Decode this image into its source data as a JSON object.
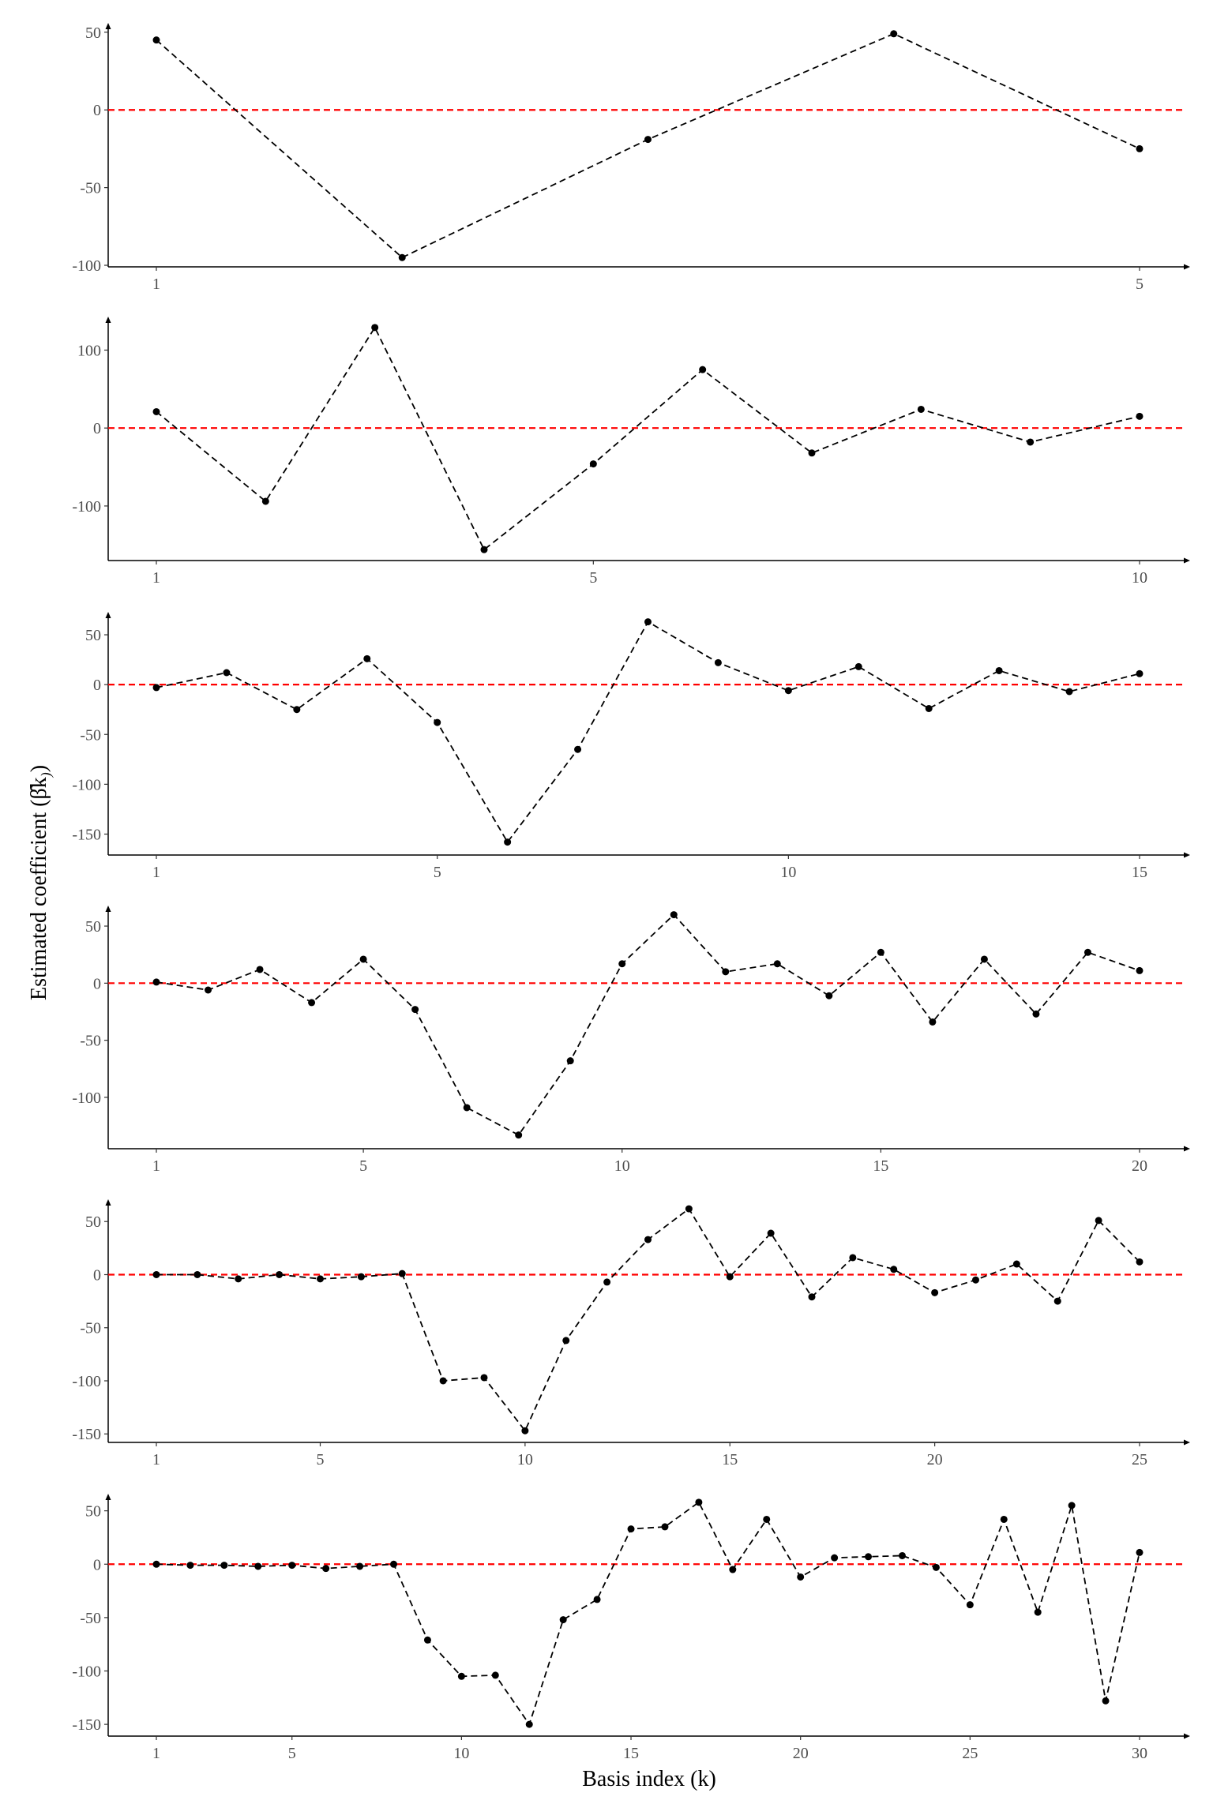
{
  "chart_data": {
    "type": "line",
    "xlabel": "Basis index (k)",
    "ylabel": "Estimated coefficient (β̂k)",
    "reference_line": {
      "y": 0,
      "color": "#ff0000",
      "style": "dashed"
    },
    "series_color": "#000000",
    "grid": false,
    "panels": [
      {
        "n": 5,
        "xticks": [
          1,
          5
        ],
        "yticks": [
          50,
          0,
          -50,
          -100
        ],
        "ylim": [
          -101,
          56
        ],
        "values": [
          45,
          -95,
          -19,
          49,
          -25
        ]
      },
      {
        "n": 10,
        "xticks": [
          1,
          5,
          10
        ],
        "yticks": [
          100,
          0,
          -100
        ],
        "ylim": [
          -170,
          143
        ],
        "values": [
          21,
          -94,
          129,
          -156,
          -46,
          75,
          -32,
          24,
          -18,
          15
        ]
      },
      {
        "n": 15,
        "xticks": [
          1,
          5,
          10,
          15
        ],
        "yticks": [
          50,
          0,
          -50,
          -100,
          -150
        ],
        "ylim": [
          -171,
          73
        ],
        "values": [
          -3,
          12,
          -25,
          26,
          -38,
          -158,
          -65,
          63,
          22,
          -6,
          18,
          -24,
          14,
          -7,
          11
        ]
      },
      {
        "n": 20,
        "xticks": [
          1,
          5,
          10,
          15,
          20
        ],
        "yticks": [
          50,
          0,
          -50,
          -100
        ],
        "ylim": [
          -145,
          68
        ],
        "values": [
          1,
          -6,
          12,
          -17,
          21,
          -23,
          -109,
          -133,
          -68,
          17,
          60,
          10,
          17,
          -11,
          27,
          -34,
          21,
          -27,
          27,
          11
        ]
      },
      {
        "n": 25,
        "xticks": [
          1,
          5,
          10,
          15,
          20,
          25
        ],
        "yticks": [
          50,
          0,
          -50,
          -100,
          -150
        ],
        "ylim": [
          -158,
          71
        ],
        "values": [
          0,
          0,
          -4,
          0,
          -4,
          -2,
          1,
          -100,
          -97,
          -147,
          -62,
          -7,
          33,
          62,
          -2,
          39,
          -21,
          16,
          5,
          -17,
          -5,
          10,
          -25,
          51,
          12
        ]
      },
      {
        "n": 30,
        "xticks": [
          1,
          5,
          10,
          15,
          20,
          25,
          30
        ],
        "yticks": [
          50,
          0,
          -50,
          -100,
          -150
        ],
        "ylim": [
          -161,
          66
        ],
        "values": [
          0,
          -1,
          -1,
          -2,
          -1,
          -4,
          -2,
          0,
          -71,
          -105,
          -104,
          -150,
          -52,
          -33,
          33,
          35,
          58,
          -5,
          42,
          -12,
          6,
          7,
          8,
          -3,
          -38,
          42,
          -45,
          55,
          -128,
          11
        ]
      }
    ]
  }
}
